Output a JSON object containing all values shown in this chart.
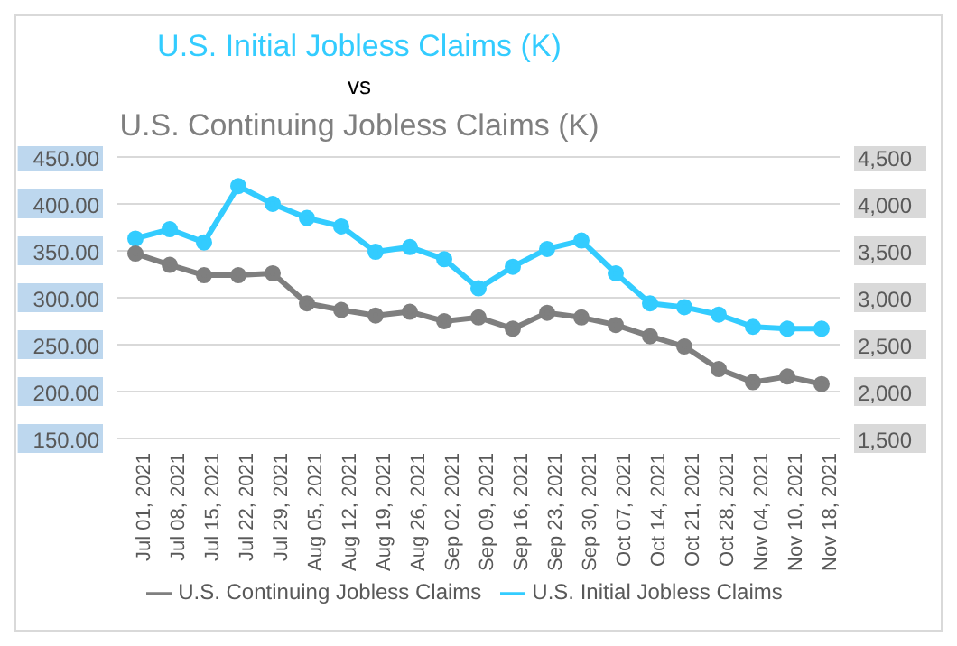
{
  "chart_data": {
    "type": "line",
    "title": "U.S. Initial Jobless Claims (K)",
    "subtitle": "vs",
    "annotations": [
      "U.S. Continuing Jobless Claims (K)"
    ],
    "categories": [
      "Jul 01, 2021",
      "Jul 08, 2021",
      "Jul 15, 2021",
      "Jul 22, 2021",
      "Jul 29, 2021",
      "Aug 05, 2021",
      "Aug 12, 2021",
      "Aug 19, 2021",
      "Aug 26, 2021",
      "Sep 02, 2021",
      "Sep 09, 2021",
      "Sep 16, 2021",
      "Sep 23, 2021",
      "Sep 30, 2021",
      "Oct 07, 2021",
      "Oct 14, 2021",
      "Oct 21, 2021",
      "Oct 28, 2021",
      "Nov 04, 2021",
      "Nov 10, 2021",
      "Nov 18, 2021"
    ],
    "series": [
      {
        "name": "U.S. Initial Jobless Claims",
        "color": "#33ccff",
        "values": [
          363,
          373,
          359,
          419,
          400,
          385,
          376,
          349,
          354,
          341,
          310,
          333,
          352,
          361,
          326,
          294,
          290,
          282,
          269,
          267,
          267
        ]
      },
      {
        "name": "U.S. Continuing Jobless Claims",
        "color": "#7f7f7f",
        "axis": "y2",
        "values": [
          3470,
          3350,
          3240,
          3240,
          3260,
          2940,
          2870,
          2810,
          2850,
          2750,
          2790,
          2670,
          2840,
          2790,
          2710,
          2590,
          2480,
          2240,
          2100,
          2160,
          2080
        ]
      }
    ],
    "ylim": [
      150,
      450
    ],
    "yticks": [
      {
        "value": 150,
        "label": "150.00"
      },
      {
        "value": 200,
        "label": "200.00"
      },
      {
        "value": 250,
        "label": "250.00"
      },
      {
        "value": 300,
        "label": "300.00"
      },
      {
        "value": 350,
        "label": "350.00"
      },
      {
        "value": 400,
        "label": "400.00"
      },
      {
        "value": 450,
        "label": "450.00"
      }
    ],
    "y2lim": [
      1500,
      4500
    ],
    "y2ticks": [
      {
        "value": 1500,
        "label": "1,500"
      },
      {
        "value": 2000,
        "label": "2,000"
      },
      {
        "value": 2500,
        "label": "2,500"
      },
      {
        "value": 3000,
        "label": "3,000"
      },
      {
        "value": 3500,
        "label": "3,500"
      },
      {
        "value": 4000,
        "label": "4,000"
      },
      {
        "value": 4500,
        "label": "4,500"
      }
    ],
    "grid": "y",
    "legend": "bottom",
    "marker": "circle",
    "line_style": "solid"
  }
}
